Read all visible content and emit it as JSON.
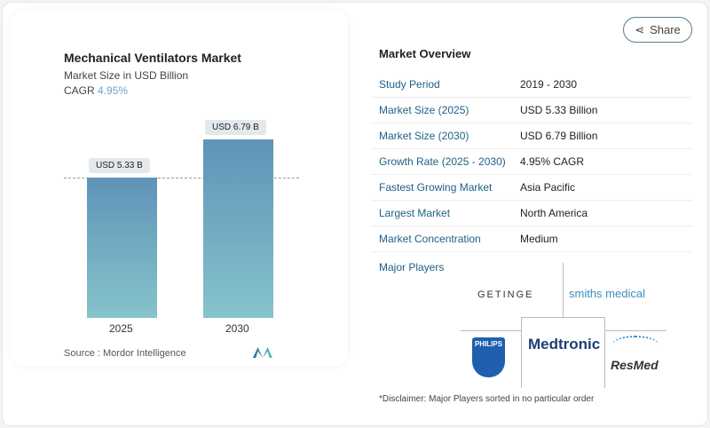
{
  "chart": {
    "title": "Mechanical Ventilators Market",
    "subtitle": "Market Size in USD Billion",
    "cagr_label": "CAGR",
    "cagr_value": "4.95%",
    "source": "Source :  Mordor Intelligence"
  },
  "chart_data": {
    "type": "bar",
    "categories": [
      "2025",
      "2030"
    ],
    "values": [
      5.33,
      6.79
    ],
    "data_labels": [
      "USD 5.33 B",
      "USD 6.79 B"
    ],
    "title": "Mechanical Ventilators Market",
    "ylabel": "Market Size in USD Billion",
    "colors": [
      "#5f93b8",
      "#86c3cb"
    ]
  },
  "share": {
    "label": "Share",
    "icon": "share-icon"
  },
  "overview": {
    "title": "Market Overview",
    "rows": [
      {
        "k": "Study Period",
        "v": "2019 - 2030"
      },
      {
        "k": "Market Size (2025)",
        "v": "USD 5.33 Billion"
      },
      {
        "k": "Market Size (2030)",
        "v": "USD 6.79 Billion"
      },
      {
        "k": "Growth Rate (2025 - 2030)",
        "v": "4.95% CAGR"
      },
      {
        "k": "Fastest Growing Market",
        "v": "Asia Pacific"
      },
      {
        "k": "Largest Market",
        "v": "North America"
      },
      {
        "k": "Market Concentration",
        "v": "Medium"
      }
    ]
  },
  "players": {
    "title": "Major Players",
    "logos": [
      "GETINGE",
      "smiths medical",
      "PHILIPS",
      "Medtronic",
      "ResMed"
    ],
    "disclaimer": "*Disclaimer: Major Players sorted in no particular order"
  }
}
